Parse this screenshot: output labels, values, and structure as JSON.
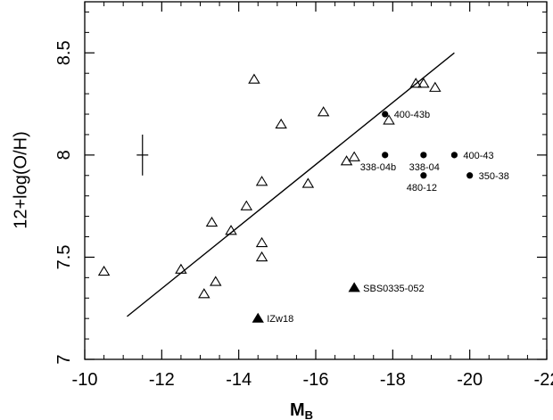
{
  "chart_data": {
    "type": "scatter",
    "xlabel_main": "M",
    "xlabel_sub": "B",
    "ylabel": "12+log(O/H)",
    "xlim": [
      -10,
      -22
    ],
    "ylim": [
      7,
      8.75
    ],
    "x_ticks": [
      -10,
      -12,
      -14,
      -16,
      -18,
      -20,
      -22
    ],
    "x_tick_labels": [
      "-10",
      "-12",
      "-14",
      "-16",
      "-18",
      "-20",
      "-22"
    ],
    "y_ticks": [
      7,
      7.5,
      8,
      8.5
    ],
    "y_tick_labels": [
      "7",
      "7.5",
      "8",
      "8.5"
    ],
    "fit_line": {
      "x": [
        -11.1,
        -19.6
      ],
      "y": [
        7.21,
        8.5
      ]
    },
    "error_bar": {
      "x": -11.5,
      "y": 8.0,
      "yerr": 0.1,
      "xerr": 0.15
    },
    "series": [
      {
        "marker": "open-triangle",
        "points": [
          {
            "x": -10.5,
            "y": 7.43
          },
          {
            "x": -12.5,
            "y": 7.44
          },
          {
            "x": -13.1,
            "y": 7.32
          },
          {
            "x": -13.3,
            "y": 7.67
          },
          {
            "x": -13.4,
            "y": 7.38
          },
          {
            "x": -13.8,
            "y": 7.63
          },
          {
            "x": -14.2,
            "y": 7.75
          },
          {
            "x": -14.4,
            "y": 8.37
          },
          {
            "x": -14.6,
            "y": 7.87
          },
          {
            "x": -14.6,
            "y": 7.57
          },
          {
            "x": -14.6,
            "y": 7.5
          },
          {
            "x": -15.1,
            "y": 8.15
          },
          {
            "x": -15.8,
            "y": 7.86
          },
          {
            "x": -16.2,
            "y": 8.21
          },
          {
            "x": -16.8,
            "y": 7.97
          },
          {
            "x": -17.0,
            "y": 7.99
          },
          {
            "x": -17.9,
            "y": 8.17
          },
          {
            "x": -18.6,
            "y": 8.35
          },
          {
            "x": -18.8,
            "y": 8.35
          },
          {
            "x": -19.1,
            "y": 8.33
          }
        ]
      },
      {
        "marker": "filled-circle",
        "points": [
          {
            "x": -17.8,
            "y": 8.2,
            "label": "400-43b",
            "anchor": "start"
          },
          {
            "x": -17.8,
            "y": 8.0,
            "label": "338-04b",
            "anchor": "start-below"
          },
          {
            "x": -18.8,
            "y": 8.0,
            "label": "338-04",
            "anchor": "end-below"
          },
          {
            "x": -19.6,
            "y": 8.0,
            "label": "400-43",
            "anchor": "start"
          },
          {
            "x": -18.8,
            "y": 7.9,
            "label": "480-12",
            "anchor": "below"
          },
          {
            "x": -20.0,
            "y": 7.9,
            "label": "350-38",
            "anchor": "start"
          }
        ]
      },
      {
        "marker": "filled-triangle",
        "points": [
          {
            "x": -17.0,
            "y": 7.35,
            "label": "SBS0335-052",
            "anchor": "start"
          },
          {
            "x": -14.5,
            "y": 7.2,
            "label": "IZw18",
            "anchor": "start"
          }
        ]
      }
    ]
  }
}
